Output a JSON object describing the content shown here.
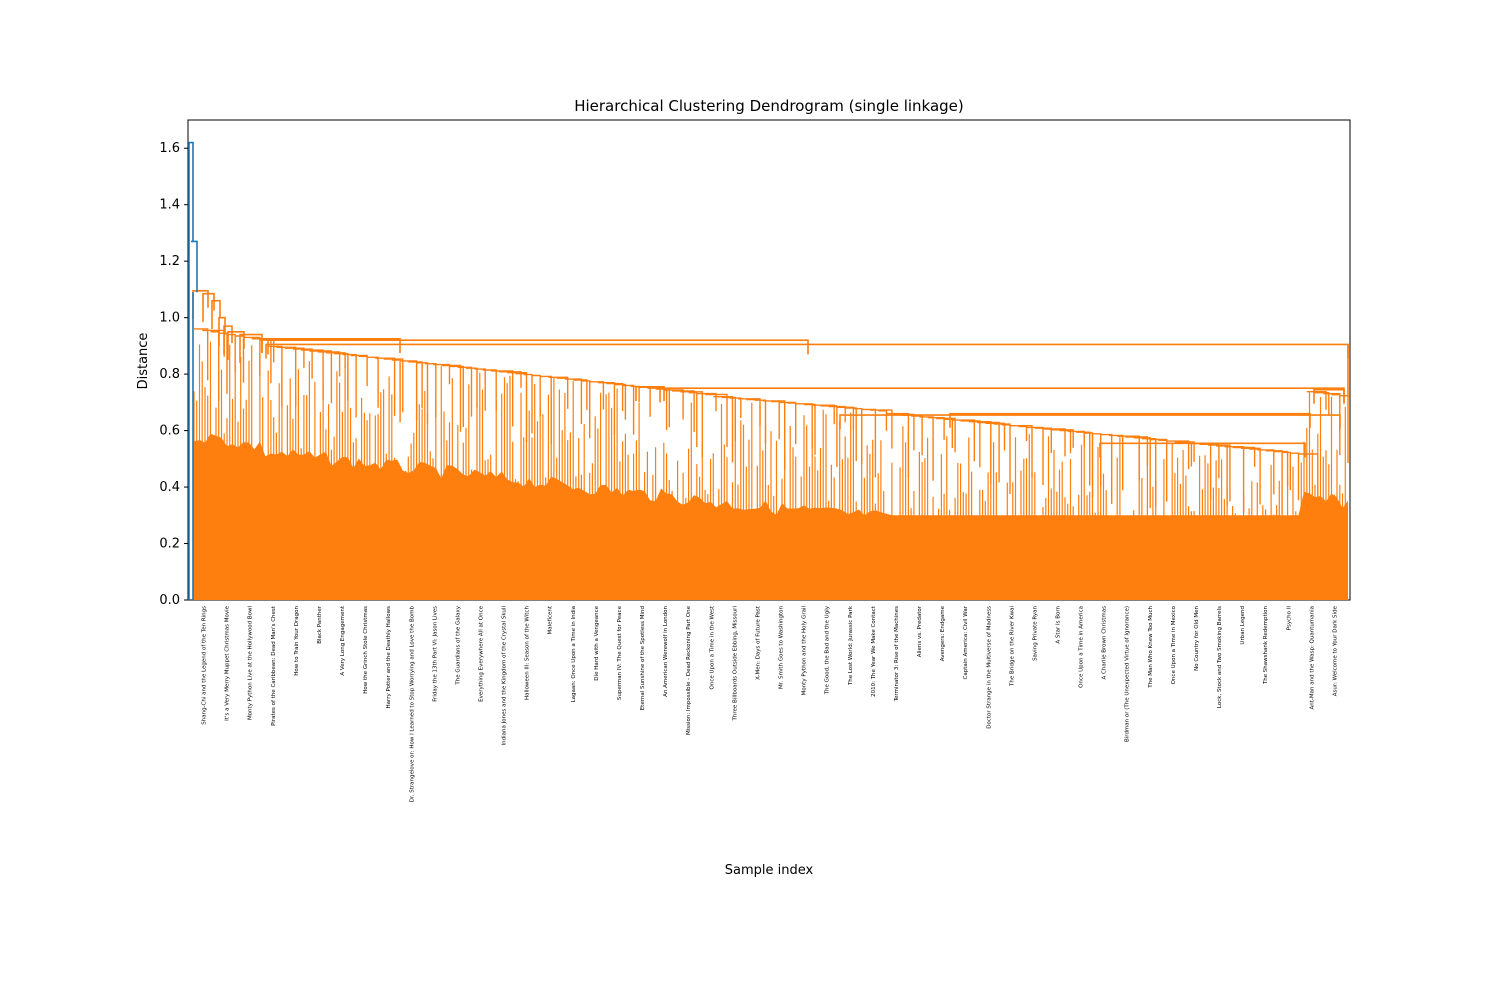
{
  "chart_data": {
    "type": "dendrogram",
    "title": "Hierarchical Clustering Dendrogram (single linkage)",
    "xlabel": "Sample index",
    "ylabel": "Distance",
    "ylim": [
      0,
      1.7
    ],
    "yticks": [
      0.0,
      0.2,
      0.4,
      0.6,
      0.8,
      1.0,
      1.2,
      1.4,
      1.6
    ],
    "colors": {
      "top_cluster": "#1f77b4",
      "main_cluster": "#ff7f0e"
    },
    "top_merges": [
      1.62,
      1.27,
      1.09
    ],
    "leaf_labels": [
      "Shang-Chi and the Legend of the Ten Rings",
      "It's a Very Merry Muppet Christmas Movie",
      "Monty Python Live at the Hollywood Bowl",
      "Pirates of the Caribbean: Dead Man's Chest",
      "How to Train Your Dragon",
      "Black Panther",
      "A Very Long Engagement",
      "How the Grinch Stole Christmas",
      "Harry Potter and the Deathly Hallows",
      "Dr. Strangelove or: How I Learned to Stop Worrying and Love the Bomb",
      "Friday the 13th Part VI: Jason Lives",
      "The Guardians of the Galaxy",
      "Everything Everywhere All at Once",
      "Indiana Jones and the Kingdom of the Crystal Skull",
      "Halloween III: Season of the Witch",
      "Maleficent",
      "Lagaan: Once Upon a Time in India",
      "Die Hard with a Vengeance",
      "Superman IV: The Quest for Peace",
      "Eternal Sunshine of the Spotless Mind",
      "An American Werewolf in London",
      "Mission: Impossible - Dead Reckoning Part One",
      "Once Upon a Time in the West",
      "Three Billboards Outside Ebbing, Missouri",
      "X-Men: Days of Future Past",
      "Mr. Smith Goes to Washington",
      "Monty Python and the Holy Grail",
      "The Good, the Bad and the Ugly",
      "The Lost World: Jurassic Park",
      "2010: The Year We Make Contact",
      "Terminator 3: Rise of the Machines",
      "Aliens vs. Predator",
      "Avengers: Endgame",
      "Captain America: Civil War",
      "Doctor Strange in the Multiverse of Madness",
      "The Bridge on the River Kwai",
      "Saving Private Ryan",
      "A Star Is Born",
      "Once Upon a Time in America",
      "A Charlie Brown Christmas",
      "Birdman or (The Unexpected Virtue of Ignorance)",
      "The Man Who Knew Too Much",
      "Once Upon a Time in Mexico",
      "No Country for Old Men",
      "Lock, Stock and Two Smoking Barrels",
      "Urban Legend",
      "The Shawshank Redemption",
      "Psycho II",
      "Ant-Man and the Wasp: Quantumania",
      "Asur: Welcome to Your Dark Side"
    ]
  }
}
